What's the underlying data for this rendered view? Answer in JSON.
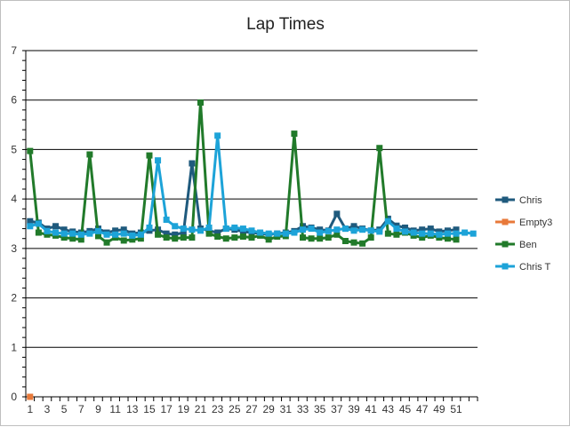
{
  "chart_data": {
    "type": "line",
    "title": "Lap Times",
    "xlabel": "",
    "ylabel": "",
    "ylim": [
      0,
      7
    ],
    "yticks": [
      0,
      1,
      2,
      3,
      4,
      5,
      6,
      7
    ],
    "xrange": [
      1,
      53
    ],
    "xtick_labels": [
      1,
      3,
      5,
      7,
      9,
      11,
      13,
      15,
      17,
      19,
      21,
      23,
      25,
      27,
      29,
      31,
      33,
      35,
      37,
      39,
      41,
      43,
      45,
      47,
      49,
      51
    ],
    "grid": true,
    "legend_position": "right",
    "series": [
      {
        "name": "Chris",
        "color": "#1f5a7d",
        "marker": "square",
        "x": [
          1,
          2,
          3,
          4,
          5,
          6,
          7,
          8,
          9,
          10,
          11,
          12,
          13,
          14,
          15,
          16,
          17,
          18,
          19,
          20,
          21,
          22,
          23,
          24,
          25,
          26,
          27,
          28,
          29,
          30,
          31,
          32,
          33,
          34,
          35,
          36,
          37,
          38,
          39,
          40,
          41,
          42,
          43,
          44,
          45,
          46,
          47,
          48,
          49,
          50,
          51
        ],
        "values": [
          3.55,
          3.52,
          3.4,
          3.45,
          3.38,
          3.34,
          3.32,
          3.35,
          3.4,
          3.32,
          3.36,
          3.38,
          3.3,
          3.32,
          3.36,
          3.38,
          3.3,
          3.28,
          3.32,
          4.72,
          3.4,
          3.36,
          3.32,
          3.4,
          3.38,
          3.34,
          3.32,
          3.3,
          3.28,
          3.3,
          3.32,
          3.35,
          3.45,
          3.42,
          3.38,
          3.36,
          3.7,
          3.4,
          3.45,
          3.4,
          3.36,
          3.38,
          3.6,
          3.46,
          3.42,
          3.36,
          3.38,
          3.4,
          3.34,
          3.36,
          3.38
        ]
      },
      {
        "name": "Empty3",
        "color": "#e8793a",
        "marker": "square",
        "x": [
          1
        ],
        "values": [
          0
        ]
      },
      {
        "name": "Ben",
        "color": "#217a2a",
        "marker": "square",
        "x": [
          1,
          2,
          3,
          4,
          5,
          6,
          7,
          8,
          9,
          10,
          11,
          12,
          13,
          14,
          15,
          16,
          17,
          18,
          19,
          20,
          21,
          22,
          23,
          24,
          25,
          26,
          27,
          28,
          29,
          30,
          31,
          32,
          33,
          34,
          35,
          36,
          37,
          38,
          39,
          40,
          41,
          42,
          43,
          44,
          45,
          46,
          47,
          48,
          49,
          50,
          51
        ],
        "values": [
          4.97,
          3.32,
          3.28,
          3.26,
          3.22,
          3.2,
          3.18,
          4.9,
          3.25,
          3.12,
          3.22,
          3.16,
          3.18,
          3.2,
          4.88,
          3.28,
          3.22,
          3.2,
          3.22,
          3.22,
          5.95,
          3.3,
          3.24,
          3.2,
          3.22,
          3.24,
          3.22,
          3.26,
          3.18,
          3.24,
          3.25,
          5.32,
          3.22,
          3.2,
          3.2,
          3.22,
          3.28,
          3.15,
          3.12,
          3.1,
          3.22,
          5.03,
          3.3,
          3.28,
          3.32,
          3.26,
          3.22,
          3.26,
          3.22,
          3.2,
          3.18
        ]
      },
      {
        "name": "Chris T",
        "color": "#1da3d8",
        "marker": "square",
        "x": [
          1,
          2,
          3,
          4,
          5,
          6,
          7,
          8,
          9,
          10,
          11,
          12,
          13,
          14,
          15,
          16,
          17,
          18,
          19,
          20,
          21,
          22,
          23,
          24,
          25,
          26,
          27,
          28,
          29,
          30,
          31,
          32,
          33,
          34,
          35,
          36,
          37,
          38,
          39,
          40,
          41,
          42,
          43,
          44,
          45,
          46,
          47,
          48,
          49,
          50,
          51,
          52,
          53
        ],
        "values": [
          3.45,
          3.5,
          3.35,
          3.32,
          3.3,
          3.3,
          3.28,
          3.3,
          3.35,
          3.28,
          3.28,
          3.3,
          3.26,
          3.28,
          3.42,
          4.78,
          3.58,
          3.45,
          3.4,
          3.38,
          3.36,
          3.42,
          5.28,
          3.4,
          3.42,
          3.4,
          3.36,
          3.32,
          3.3,
          3.3,
          3.3,
          3.32,
          3.38,
          3.4,
          3.32,
          3.35,
          3.38,
          3.4,
          3.36,
          3.38,
          3.36,
          3.34,
          3.55,
          3.4,
          3.34,
          3.32,
          3.3,
          3.3,
          3.28,
          3.3,
          3.3,
          3.32,
          3.3
        ]
      }
    ]
  }
}
